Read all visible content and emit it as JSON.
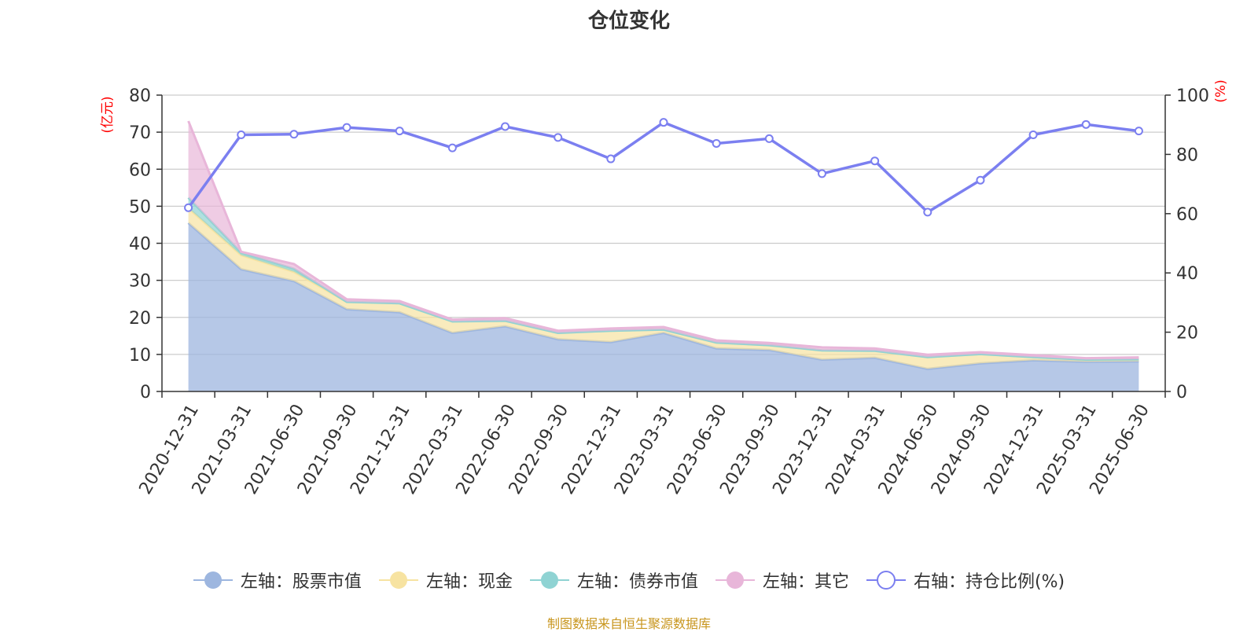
{
  "title": "仓位变化",
  "source": "制图数据来自恒生聚源数据库",
  "chart_data": {
    "type": "area",
    "title": "仓位变化",
    "x": [
      "2020-12-31",
      "2021-03-31",
      "2021-06-30",
      "2021-09-30",
      "2021-12-31",
      "2022-03-31",
      "2022-06-30",
      "2022-09-30",
      "2022-12-31",
      "2023-03-31",
      "2023-06-30",
      "2023-09-30",
      "2023-12-31",
      "2024-03-31",
      "2024-06-30",
      "2024-09-30",
      "2024-12-31",
      "2025-03-31",
      "2025-06-30"
    ],
    "left_axis": {
      "label": "(亿元)",
      "ylim": [
        0,
        80
      ],
      "ticks": [
        0,
        10,
        20,
        30,
        40,
        50,
        60,
        70,
        80
      ]
    },
    "right_axis": {
      "label": "(%)",
      "ylim": [
        0,
        100
      ],
      "ticks": [
        0,
        20,
        40,
        60,
        80,
        100
      ]
    },
    "stacked": true,
    "series": [
      {
        "name": "左轴：股票市值",
        "axis": "left",
        "color": "#9db6df",
        "values": [
          45.5,
          33.0,
          29.8,
          22.2,
          21.4,
          15.8,
          17.6,
          14.1,
          13.3,
          15.8,
          11.6,
          11.2,
          8.6,
          9.1,
          6.1,
          7.6,
          8.4,
          8.0,
          8.1
        ]
      },
      {
        "name": "左轴：现金",
        "axis": "left",
        "color": "#f7e3a1",
        "values": [
          4.0,
          3.8,
          2.5,
          2.0,
          2.4,
          3.1,
          1.5,
          1.7,
          3.1,
          0.9,
          1.6,
          1.3,
          2.5,
          1.9,
          3.2,
          2.5,
          0.9,
          0.6,
          0.6
        ]
      },
      {
        "name": "左轴：债券市值",
        "axis": "left",
        "color": "#8fd3d3",
        "values": [
          2.8,
          0.7,
          0.8,
          0.0,
          0.0,
          0.0,
          0.0,
          0.0,
          0.0,
          0.0,
          0.0,
          0.0,
          0.0,
          0.0,
          0.0,
          0.0,
          0.0,
          0.0,
          0.0
        ]
      },
      {
        "name": "左轴：其它",
        "axis": "left",
        "color": "#e8b6d9",
        "values": [
          20.7,
          0.2,
          1.3,
          0.7,
          0.6,
          0.5,
          0.7,
          0.6,
          0.6,
          0.7,
          0.6,
          0.6,
          0.8,
          0.6,
          0.6,
          0.5,
          0.5,
          0.4,
          0.5
        ]
      },
      {
        "name": "右轴：持仓比例(%)",
        "axis": "right",
        "type": "line",
        "color": "#7b7ff0",
        "values": [
          62.0,
          86.6,
          86.8,
          89.1,
          87.9,
          82.2,
          89.4,
          85.7,
          78.5,
          90.8,
          83.7,
          85.3,
          73.5,
          77.8,
          60.5,
          71.3,
          86.6,
          90.1,
          87.9
        ]
      }
    ],
    "legend_position": "bottom",
    "grid": true
  }
}
